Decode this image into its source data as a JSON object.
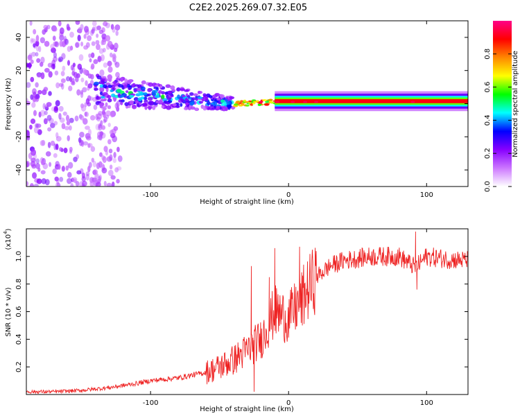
{
  "title": "C2E2.2025.269.07.32.E05",
  "chart_data": [
    {
      "type": "heatmap",
      "name": "spectrogram",
      "xlabel": "Height of straight line (km)",
      "ylabel": "Frequency (Hz)",
      "xlim": [
        -190,
        130
      ],
      "ylim": [
        -50,
        50
      ],
      "xticks": [
        -100,
        0,
        100
      ],
      "yticks": [
        -40,
        -20,
        0,
        20,
        40
      ],
      "colorbar": {
        "label": "Normalized spectral amplitude",
        "range": [
          0,
          1
        ],
        "ticks": [
          0.0,
          0.2,
          0.4,
          0.6,
          0.8
        ],
        "colors": [
          "#ffffff",
          "#cc77ff",
          "#8800ff",
          "#0000ff",
          "#00ffff",
          "#00ff00",
          "#ffff00",
          "#ff8800",
          "#ff0000",
          "#ff0088"
        ]
      },
      "features": [
        {
          "region": "noise",
          "x_range": [
            -190,
            -130
          ],
          "freq_range": [
            -50,
            50
          ],
          "amplitude": 0.1
        },
        {
          "region": "scattered signal",
          "x_range": [
            -140,
            -40
          ],
          "center_freq": 8,
          "end_freq": 0,
          "spread_hz": 10,
          "amplitude": 0.4
        },
        {
          "region": "converging carrier",
          "x_range": [
            -40,
            20
          ],
          "center_freq": 0,
          "spread_hz": 3,
          "amplitude": 0.75
        },
        {
          "region": "steady carrier",
          "x_range": [
            20,
            130
          ],
          "center_freq": 1.5,
          "spread_hz": 2,
          "amplitude": 0.9
        }
      ]
    },
    {
      "type": "line",
      "name": "snr",
      "xlabel": "Height of straight line (km)",
      "ylabel": "SNR (10 * v/v)",
      "y_multiplier": "(x10",
      "y_multiplier_exp": "4",
      "y_multiplier_close": ")",
      "xlim": [
        -190,
        130
      ],
      "ylim": [
        0,
        1.2
      ],
      "xticks": [
        -100,
        0,
        100
      ],
      "yticks": [
        0.2,
        0.4,
        0.6,
        0.8,
        1.0
      ],
      "color": "#ee2222",
      "series": [
        {
          "name": "SNR",
          "x": [
            -190,
            -170,
            -150,
            -130,
            -110,
            -100,
            -80,
            -60,
            -50,
            -40,
            -30,
            -20,
            -10,
            0,
            10,
            20,
            30,
            40,
            60,
            80,
            92,
            100,
            115,
            130
          ],
          "y": [
            0.02,
            0.02,
            0.03,
            0.05,
            0.08,
            0.1,
            0.12,
            0.16,
            0.2,
            0.25,
            0.32,
            0.4,
            0.6,
            0.55,
            0.7,
            0.85,
            0.93,
            0.97,
            1.0,
            1.0,
            0.92,
            1.0,
            0.98,
            0.97
          ]
        }
      ],
      "spikes": [
        {
          "x": -27,
          "y": 0.93
        },
        {
          "x": -25,
          "y": 0.02
        },
        {
          "x": -14,
          "y": 0.85
        },
        {
          "x": -10,
          "y": 1.06
        },
        {
          "x": 8,
          "y": 1.07
        },
        {
          "x": 10,
          "y": 0.5
        },
        {
          "x": 92,
          "y": 1.18
        },
        {
          "x": 93,
          "y": 0.76
        }
      ]
    }
  ]
}
